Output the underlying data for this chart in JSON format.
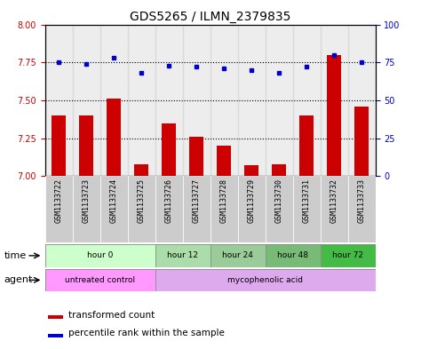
{
  "title": "GDS5265 / ILMN_2379835",
  "samples": [
    "GSM1133722",
    "GSM1133723",
    "GSM1133724",
    "GSM1133725",
    "GSM1133726",
    "GSM1133727",
    "GSM1133728",
    "GSM1133729",
    "GSM1133730",
    "GSM1133731",
    "GSM1133732",
    "GSM1133733"
  ],
  "transformed_count": [
    7.4,
    7.4,
    7.51,
    7.08,
    7.35,
    7.26,
    7.2,
    7.07,
    7.08,
    7.4,
    7.8,
    7.46
  ],
  "percentile_rank": [
    75,
    74,
    78,
    68,
    73,
    72,
    71,
    70,
    68,
    72,
    80,
    75
  ],
  "ylim_left": [
    7.0,
    8.0
  ],
  "ylim_right": [
    0,
    100
  ],
  "yticks_left": [
    7.0,
    7.25,
    7.5,
    7.75,
    8.0
  ],
  "yticks_right": [
    0,
    25,
    50,
    75,
    100
  ],
  "bar_color": "#cc0000",
  "dot_color": "#0000cc",
  "dotted_line_values": [
    7.25,
    7.5,
    7.75
  ],
  "time_groups": [
    {
      "label": "hour 0",
      "start": 0,
      "end": 3,
      "color": "#ccffcc"
    },
    {
      "label": "hour 12",
      "start": 4,
      "end": 5,
      "color": "#aaddaa"
    },
    {
      "label": "hour 24",
      "start": 6,
      "end": 7,
      "color": "#99cc99"
    },
    {
      "label": "hour 48",
      "start": 8,
      "end": 9,
      "color": "#77bb77"
    },
    {
      "label": "hour 72",
      "start": 10,
      "end": 11,
      "color": "#44bb44"
    }
  ],
  "agent_groups": [
    {
      "label": "untreated control",
      "start": 0,
      "end": 3,
      "color": "#ff99ff"
    },
    {
      "label": "mycophenolic acid",
      "start": 4,
      "end": 11,
      "color": "#ddaaee"
    }
  ],
  "sample_bg_color": "#cccccc",
  "xlabel_time": "time",
  "xlabel_agent": "agent",
  "title_fontsize": 10,
  "tick_fontsize": 7,
  "sample_fontsize": 6
}
